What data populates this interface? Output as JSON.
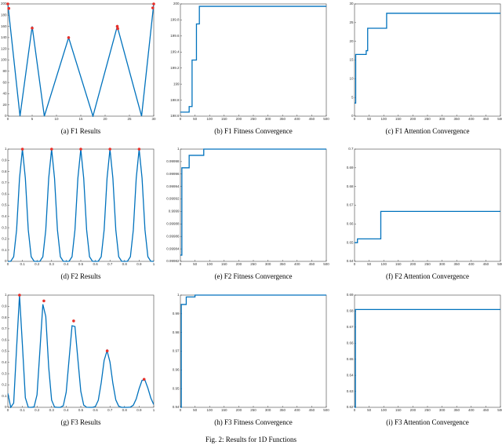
{
  "figure_caption": "Fig. 2: Results for 1D Functions",
  "chart_data": [
    {
      "type": "line",
      "title": "(a) F1 Results",
      "x": [
        0,
        2.5,
        5,
        7.5,
        12.5,
        17.5,
        22.5,
        27.5,
        30
      ],
      "series": [
        {
          "color": "#0072bd",
          "values": [
            200,
            0,
            160,
            0,
            140,
            0,
            160,
            0,
            200
          ]
        }
      ],
      "markers": {
        "color": "#e8302a",
        "x": [
          0,
          0.2,
          5,
          12.5,
          22.5,
          22.6,
          29.8,
          30
        ],
        "values": [
          200,
          192,
          157,
          140,
          160,
          156,
          193,
          200
        ]
      },
      "xlim": [
        0,
        30
      ],
      "xticks": [
        0,
        5,
        10,
        15,
        20,
        25,
        30
      ],
      "ylim": [
        0,
        200
      ],
      "yticks": [
        0,
        20,
        40,
        60,
        80,
        100,
        120,
        140,
        160,
        180,
        200
      ]
    },
    {
      "type": "step",
      "title": "(b) F1 Fitness Convergence",
      "x": [
        0,
        30,
        40,
        55,
        65,
        500
      ],
      "series": [
        {
          "color": "#0072bd",
          "values": [
            198.65,
            198.72,
            199.3,
            199.75,
            199.97,
            199.97
          ]
        }
      ],
      "xlim": [
        0,
        500
      ],
      "xticks": [
        0,
        50,
        100,
        150,
        200,
        250,
        300,
        350,
        400,
        450,
        500
      ],
      "ylim": [
        198.6,
        200
      ],
      "yticks": [
        198.6,
        198.8,
        199,
        199.2,
        199.4,
        199.6,
        199.8,
        200
      ]
    },
    {
      "type": "step",
      "title": "(c) F1 Attention Convergence",
      "x": [
        0,
        4,
        40,
        45,
        110,
        500
      ],
      "series": [
        {
          "color": "#0072bd",
          "values": [
            3.5,
            16.5,
            17.5,
            23.5,
            27.5,
            27.5
          ]
        }
      ],
      "xlim": [
        0,
        500
      ],
      "xticks": [
        0,
        50,
        100,
        150,
        200,
        250,
        300,
        350,
        400,
        450,
        500
      ],
      "ylim": [
        0,
        30
      ],
      "yticks": [
        0,
        5,
        10,
        15,
        20,
        25,
        30
      ]
    },
    {
      "type": "line",
      "title": "(d) F2 Results",
      "x": [
        0,
        0.02,
        0.04,
        0.06,
        0.08,
        0.1,
        0.12,
        0.14,
        0.16,
        0.18,
        0.2,
        0.22,
        0.24,
        0.26,
        0.28,
        0.3,
        0.32,
        0.34,
        0.36,
        0.38,
        0.4,
        0.42,
        0.44,
        0.46,
        0.48,
        0.5,
        0.52,
        0.54,
        0.56,
        0.58,
        0.6,
        0.62,
        0.64,
        0.66,
        0.68,
        0.7,
        0.72,
        0.74,
        0.76,
        0.78,
        0.8,
        0.82,
        0.84,
        0.86,
        0.88,
        0.9,
        0.92,
        0.94,
        0.96,
        0.98,
        1
      ],
      "series": [
        {
          "color": "#0072bd",
          "values": [
            0,
            0.001,
            0.041,
            0.28,
            0.74,
            1,
            0.74,
            0.28,
            0.041,
            0.001,
            0,
            0.001,
            0.041,
            0.28,
            0.74,
            1,
            0.74,
            0.28,
            0.041,
            0.001,
            0,
            0.001,
            0.041,
            0.28,
            0.74,
            1,
            0.74,
            0.28,
            0.041,
            0.001,
            0,
            0.001,
            0.041,
            0.28,
            0.74,
            1,
            0.74,
            0.28,
            0.041,
            0.001,
            0,
            0.001,
            0.041,
            0.28,
            0.74,
            1,
            0.74,
            0.28,
            0.041,
            0.001,
            0
          ]
        }
      ],
      "markers": {
        "color": "#e8302a",
        "x": [
          0.1,
          0.3,
          0.5,
          0.7,
          0.9
        ],
        "values": [
          1,
          1,
          1,
          1,
          1
        ]
      },
      "xlim": [
        0,
        1
      ],
      "xticks": [
        0,
        0.1,
        0.2,
        0.3,
        0.4,
        0.5,
        0.6,
        0.7,
        0.8,
        0.9,
        1
      ],
      "ylim": [
        0,
        1
      ],
      "yticks": [
        0,
        0.1,
        0.2,
        0.3,
        0.4,
        0.5,
        0.6,
        0.7,
        0.8,
        0.9,
        1
      ]
    },
    {
      "type": "step",
      "title": "(e) F2 Fitness Convergence",
      "x": [
        0,
        5,
        30,
        80,
        500
      ],
      "series": [
        {
          "color": "#0072bd",
          "values": [
            0.99983,
            0.99997,
            0.99999,
            1,
            1
          ]
        }
      ],
      "xlim": [
        0,
        500
      ],
      "xticks": [
        0,
        50,
        100,
        150,
        200,
        250,
        300,
        350,
        400,
        450,
        500
      ],
      "ylim": [
        0.99982,
        1
      ],
      "yticks": [
        0.99982,
        0.99984,
        0.99986,
        0.99988,
        0.9999,
        0.99992,
        0.99994,
        0.99996,
        0.99998,
        1
      ]
    },
    {
      "type": "step",
      "title": "(f) F2 Attention Convergence",
      "x": [
        0,
        10,
        90,
        500
      ],
      "series": [
        {
          "color": "#0072bd",
          "values": [
            0.65,
            0.652,
            0.6667,
            0.6667
          ]
        }
      ],
      "xlim": [
        0,
        500
      ],
      "xticks": [
        0,
        50,
        100,
        150,
        200,
        250,
        300,
        350,
        400,
        450,
        500
      ],
      "ylim": [
        0.64,
        0.7
      ],
      "yticks": [
        0.64,
        0.65,
        0.66,
        0.67,
        0.68,
        0.69,
        0.7
      ]
    },
    {
      "type": "line",
      "title": "(g) F3 Results",
      "x": [
        0,
        0.02,
        0.04,
        0.06,
        0.08,
        0.1,
        0.12,
        0.14,
        0.16,
        0.18,
        0.2,
        0.22,
        0.24,
        0.26,
        0.28,
        0.3,
        0.32,
        0.34,
        0.36,
        0.38,
        0.4,
        0.42,
        0.44,
        0.46,
        0.48,
        0.5,
        0.52,
        0.54,
        0.56,
        0.58,
        0.6,
        0.62,
        0.64,
        0.66,
        0.68,
        0.7,
        0.72,
        0.74,
        0.76,
        0.78,
        0.8,
        0.82,
        0.84,
        0.86,
        0.88,
        0.9,
        0.92,
        0.94,
        0.96,
        0.98,
        1
      ],
      "series": [
        {
          "color": "#0072bd",
          "values": [
            0.124,
            0,
            0.038,
            0.53,
            1,
            0.553,
            0.085,
            0.001,
            0,
            0.004,
            0.112,
            0.511,
            0.918,
            0.81,
            0.358,
            0.065,
            0.003,
            0,
            0,
            0.014,
            0.135,
            0.432,
            0.727,
            0.72,
            0.429,
            0.143,
            0.02,
            0.001,
            0,
            0,
            0.007,
            0.063,
            0.219,
            0.418,
            0.505,
            0.404,
            0.213,
            0.066,
            0.01,
            0,
            0,
            0,
            0.002,
            0.019,
            0.075,
            0.167,
            0.241,
            0.241,
            0.171,
            0.083,
            0.025
          ]
        }
      ],
      "markers": {
        "color": "#e8302a",
        "x": [
          0.08,
          0.247,
          0.451,
          0.681,
          0.934
        ],
        "values": [
          1,
          0.948,
          0.77,
          0.503,
          0.25
        ]
      },
      "xlim": [
        0,
        1
      ],
      "xticks": [
        0,
        0.1,
        0.2,
        0.3,
        0.4,
        0.5,
        0.6,
        0.7,
        0.8,
        0.9,
        1
      ],
      "ylim": [
        0,
        1
      ],
      "yticks": [
        0,
        0.1,
        0.2,
        0.3,
        0.4,
        0.5,
        0.6,
        0.7,
        0.8,
        0.9,
        1
      ]
    },
    {
      "type": "step",
      "title": "(h) F3 Fitness Convergence",
      "x": [
        0,
        3,
        20,
        50,
        500
      ],
      "series": [
        {
          "color": "#0072bd",
          "values": [
            0.94,
            0.995,
            0.999,
            1,
            1
          ]
        }
      ],
      "xlim": [
        0,
        500
      ],
      "xticks": [
        0,
        50,
        100,
        150,
        200,
        250,
        300,
        350,
        400,
        450,
        500
      ],
      "ylim": [
        0.94,
        1
      ],
      "yticks": [
        0.94,
        0.95,
        0.96,
        0.97,
        0.98,
        0.99,
        1
      ]
    },
    {
      "type": "step",
      "title": "(i) F3 Attention Convergence",
      "x": [
        0,
        3,
        500
      ],
      "series": [
        {
          "color": "#0072bd",
          "values": [
            0.62,
            0.681,
            0.681
          ]
        }
      ],
      "xlim": [
        0,
        500
      ],
      "xticks": [
        0,
        50,
        100,
        150,
        200,
        250,
        300,
        350,
        400,
        450,
        500
      ],
      "ylim": [
        0.62,
        0.69
      ],
      "yticks": [
        0.62,
        0.63,
        0.64,
        0.65,
        0.66,
        0.67,
        0.68,
        0.69
      ]
    }
  ]
}
